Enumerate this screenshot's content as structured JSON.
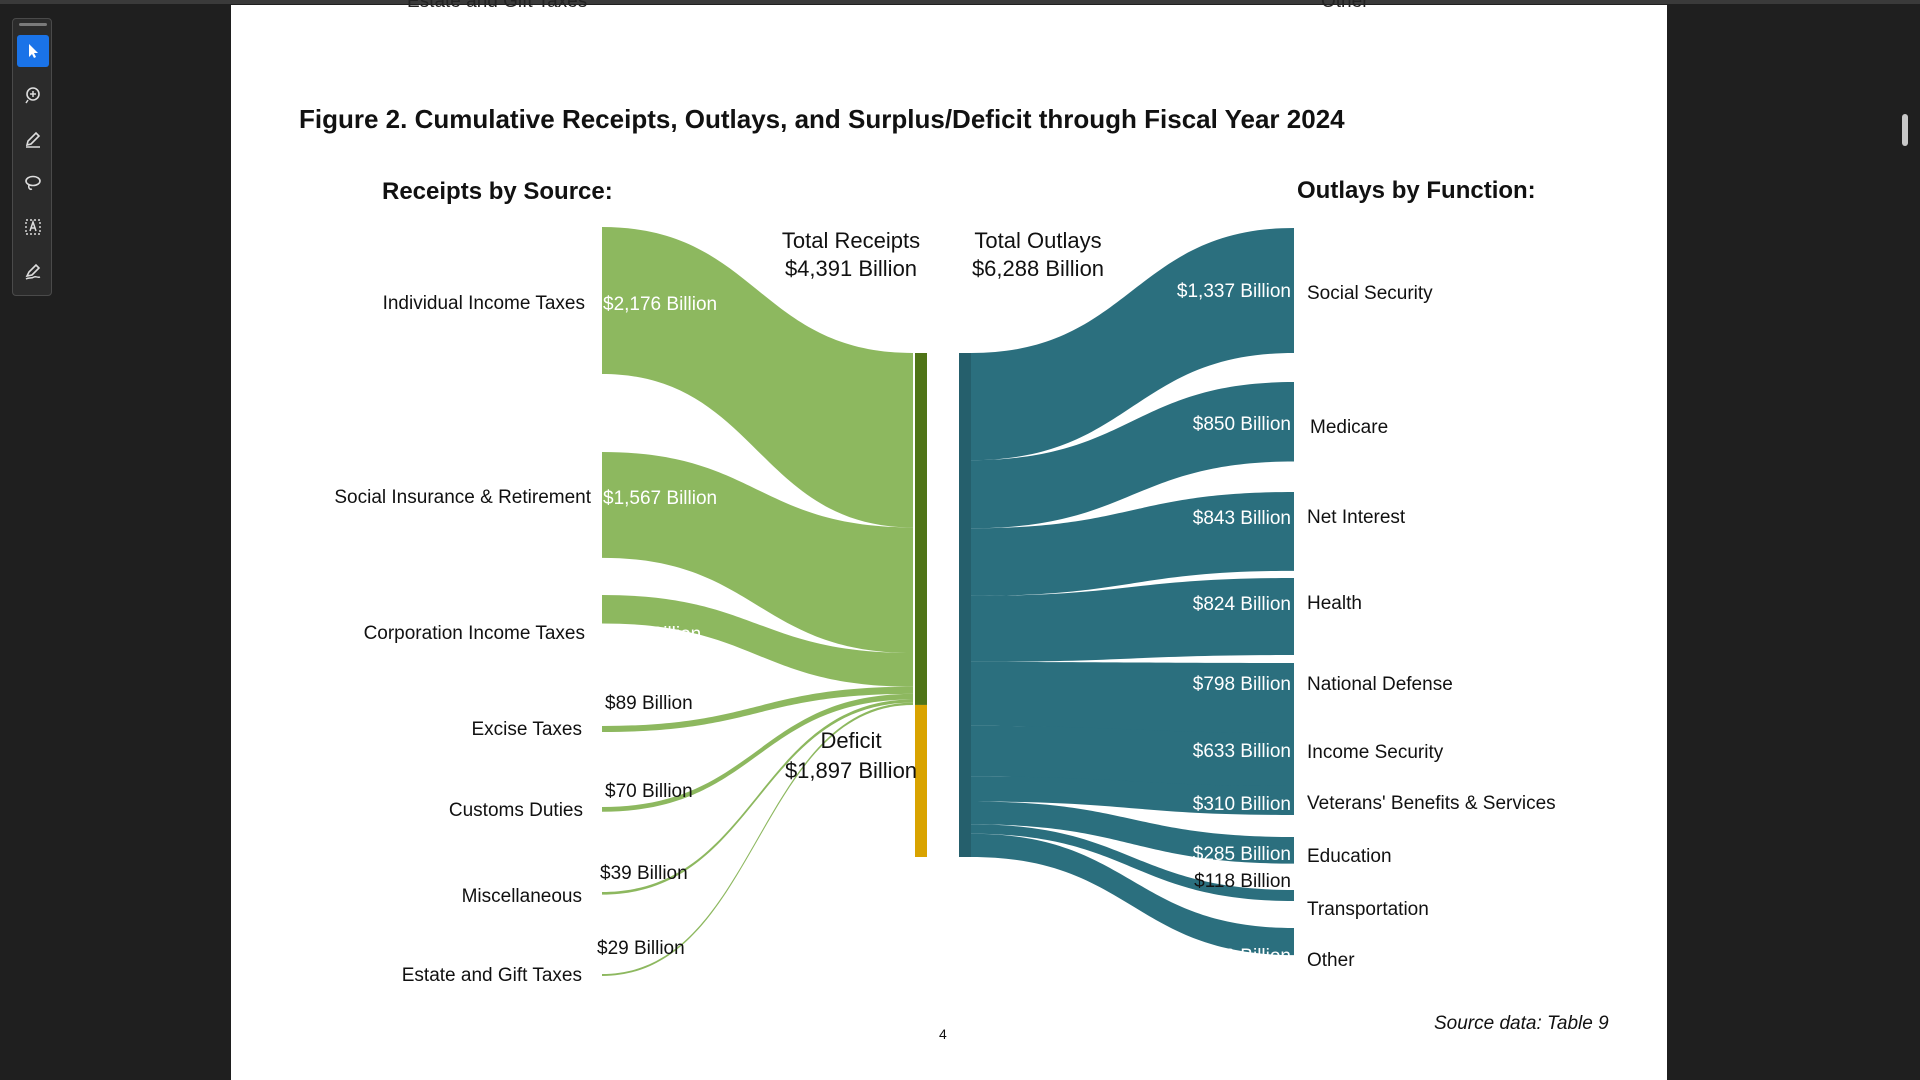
{
  "viewer": {
    "tools": [
      {
        "name": "select-tool",
        "icon": "cursor-arrow-icon"
      },
      {
        "name": "comment-tool",
        "icon": "comment-plus-icon"
      },
      {
        "name": "draw-tool",
        "icon": "pen-icon"
      },
      {
        "name": "lasso-tool",
        "icon": "lasso-icon"
      },
      {
        "name": "text-select-tool",
        "icon": "text-select-icon"
      },
      {
        "name": "sign-tool",
        "icon": "signature-icon"
      }
    ],
    "active_color": "#1a73e8"
  },
  "page": {
    "cut_left": "Estate and Gift Taxes",
    "cut_right": "Other",
    "figure_title": "Figure 2. Cumulative Receipts, Outlays, and Surplus/Deficit through Fiscal Year 2024",
    "receipts_heading": "Receipts by Source:",
    "outlays_heading": "Outlays by Function:",
    "total_receipts_label": "Total Receipts",
    "total_receipts_value": "$4,391 Billion",
    "total_outlays_label": "Total Outlays",
    "total_outlays_value": "$6,288 Billion",
    "deficit_label": "Deficit",
    "deficit_value": "$1,897 Billion",
    "source_note": "Source data: Table 9",
    "page_number": "4"
  },
  "chart_data": {
    "type": "sankey",
    "title": "Figure 2. Cumulative Receipts, Outlays, and Surplus/Deficit through Fiscal Year 2024",
    "units": "Billion",
    "colors": {
      "receipts": "#8db85f",
      "receipts_bar": "#4f7417",
      "deficit": "#d9a300",
      "outlays": "#2b6f7e",
      "outlays_bar": "#255f6c"
    },
    "receipts": [
      {
        "name": "Individual Income Taxes",
        "value": 2176,
        "label": "$2,176 Billion"
      },
      {
        "name": "Social Insurance & Retirement",
        "value": 1567,
        "label": "$1,567 Billion"
      },
      {
        "name": "Corporation Income Taxes",
        "value": 421,
        "label": "$421 Billion"
      },
      {
        "name": "Excise Taxes",
        "value": 89,
        "label": "$89 Billion"
      },
      {
        "name": "Customs Duties",
        "value": 70,
        "label": "$70 Billion"
      },
      {
        "name": "Miscellaneous",
        "value": 39,
        "label": "$39 Billion"
      },
      {
        "name": "Estate and Gift Taxes",
        "value": 29,
        "label": "$29 Billion"
      }
    ],
    "total_receipts": 4391,
    "deficit": 1897,
    "total_outlays": 6288,
    "outlays": [
      {
        "name": "Social Security",
        "value": 1337,
        "label": "$1,337 Billion"
      },
      {
        "name": "Medicare",
        "value": 850,
        "label": "$850 Billion"
      },
      {
        "name": "Net Interest",
        "value": 843,
        "label": "$843 Billion"
      },
      {
        "name": "Health",
        "value": 824,
        "label": "$824 Billion"
      },
      {
        "name": "National Defense",
        "value": 798,
        "label": "$798 Billion"
      },
      {
        "name": "Income Security",
        "value": 633,
        "label": "$633 Billion"
      },
      {
        "name": "Veterans' Benefits & Services",
        "value": 310,
        "label": "$310 Billion"
      },
      {
        "name": "Education",
        "value": 285,
        "label": "$285 Billion"
      },
      {
        "name": "Transportation",
        "value": 118,
        "label": "$118 Billion"
      },
      {
        "name": "Other",
        "value": 290,
        "label": "$290 Billion"
      }
    ]
  }
}
